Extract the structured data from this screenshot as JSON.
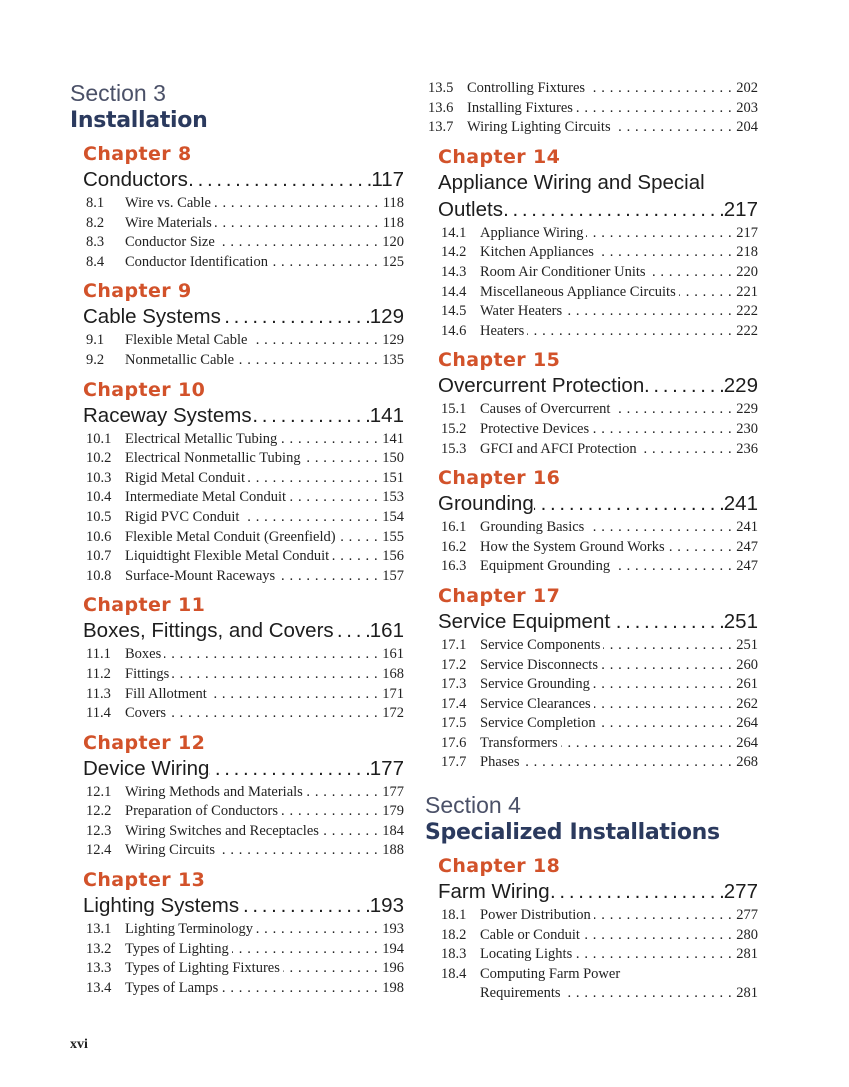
{
  "folio": "xvi",
  "columns": [
    {
      "blocks": [
        {
          "type": "section",
          "label": "Section 3",
          "title": "Installation"
        },
        {
          "type": "chapter",
          "label": "Chapter 8",
          "title": "Conductors",
          "page": "117",
          "entries": [
            {
              "num": "8.1",
              "title": "Wire vs. Cable",
              "page": "118"
            },
            {
              "num": "8.2",
              "title": "Wire Materials",
              "page": "118"
            },
            {
              "num": "8.3",
              "title": "Conductor Size",
              "page": "120"
            },
            {
              "num": "8.4",
              "title": "Conductor Identification",
              "page": "125"
            }
          ]
        },
        {
          "type": "chapter",
          "label": "Chapter 9",
          "title": "Cable Systems",
          "page": "129",
          "entries": [
            {
              "num": "9.1",
              "title": "Flexible Metal Cable",
              "page": "129"
            },
            {
              "num": "9.2",
              "title": "Nonmetallic Cable",
              "page": "135"
            }
          ]
        },
        {
          "type": "chapter",
          "label": "Chapter 10",
          "title": "Raceway Systems",
          "page": "141",
          "entries": [
            {
              "num": "10.1",
              "title": "Electrical Metallic Tubing",
              "page": "141"
            },
            {
              "num": "10.2",
              "title": "Electrical Nonmetallic Tubing",
              "page": "150"
            },
            {
              "num": "10.3",
              "title": "Rigid Metal Conduit",
              "page": "151"
            },
            {
              "num": "10.4",
              "title": "Intermediate Metal Conduit",
              "page": "153"
            },
            {
              "num": "10.5",
              "title": "Rigid PVC Conduit",
              "page": "154"
            },
            {
              "num": "10.6",
              "title": "Flexible Metal Conduit (Greenfield)",
              "page": "155"
            },
            {
              "num": "10.7",
              "title": "Liquidtight Flexible Metal Conduit",
              "page": "156"
            },
            {
              "num": "10.8",
              "title": "Surface-Mount Raceways",
              "page": "157"
            }
          ]
        },
        {
          "type": "chapter",
          "label": "Chapter 11",
          "title": "Boxes, Fittings, and Covers",
          "page": "161",
          "entries": [
            {
              "num": "11.1",
              "title": "Boxes",
              "page": "161"
            },
            {
              "num": "11.2",
              "title": "Fittings",
              "page": "168"
            },
            {
              "num": "11.3",
              "title": "Fill Allotment",
              "page": "171"
            },
            {
              "num": "11.4",
              "title": "Covers",
              "page": "172"
            }
          ]
        },
        {
          "type": "chapter",
          "label": "Chapter 12",
          "title": "Device Wiring",
          "page": "177",
          "entries": [
            {
              "num": "12.1",
              "title": "Wiring Methods and Materials",
              "page": "177"
            },
            {
              "num": "12.2",
              "title": "Preparation of Conductors",
              "page": "179"
            },
            {
              "num": "12.3",
              "title": "Wiring Switches and Receptacles",
              "page": "184"
            },
            {
              "num": "12.4",
              "title": "Wiring Circuits",
              "page": "188"
            }
          ]
        },
        {
          "type": "chapter",
          "label": "Chapter 13",
          "title": "Lighting Systems",
          "page": "193",
          "entries": [
            {
              "num": "13.1",
              "title": "Lighting Terminology",
              "page": "193"
            },
            {
              "num": "13.2",
              "title": "Types of Lighting",
              "page": "194"
            },
            {
              "num": "13.3",
              "title": "Types of Lighting Fixtures",
              "page": "196"
            },
            {
              "num": "13.4",
              "title": "Types of Lamps",
              "page": "198"
            }
          ]
        }
      ]
    },
    {
      "blocks": [
        {
          "type": "entries",
          "entries": [
            {
              "num": "13.5",
              "title": "Controlling Fixtures",
              "page": "202"
            },
            {
              "num": "13.6",
              "title": "Installing Fixtures",
              "page": "203"
            },
            {
              "num": "13.7",
              "title": "Wiring Lighting Circuits",
              "page": "204"
            }
          ]
        },
        {
          "type": "chapter",
          "label": "Chapter 14",
          "title_first": "Appliance Wiring and Special",
          "title": "Outlets",
          "page": "217",
          "entries": [
            {
              "num": "14.1",
              "title": "Appliance Wiring",
              "page": "217"
            },
            {
              "num": "14.2",
              "title": "Kitchen Appliances",
              "page": "218"
            },
            {
              "num": "14.3",
              "title": "Room Air Conditioner Units",
              "page": "220"
            },
            {
              "num": "14.4",
              "title": "Miscellaneous Appliance Circuits",
              "page": "221"
            },
            {
              "num": "14.5",
              "title": "Water Heaters",
              "page": "222"
            },
            {
              "num": "14.6",
              "title": "Heaters",
              "page": "222"
            }
          ]
        },
        {
          "type": "chapter",
          "label": "Chapter 15",
          "title": "Overcurrent Protection",
          "page": "229",
          "entries": [
            {
              "num": "15.1",
              "title": "Causes of Overcurrent",
              "page": "229"
            },
            {
              "num": "15.2",
              "title": "Protective Devices",
              "page": "230"
            },
            {
              "num": "15.3",
              "title": "GFCI and AFCI Protection",
              "page": "236"
            }
          ]
        },
        {
          "type": "chapter",
          "label": "Chapter 16",
          "title": "Grounding",
          "page": "241",
          "entries": [
            {
              "num": "16.1",
              "title": "Grounding Basics",
              "page": "241"
            },
            {
              "num": "16.2",
              "title": "How the System Ground Works",
              "page": "247"
            },
            {
              "num": "16.3",
              "title": "Equipment Grounding",
              "page": "247"
            }
          ]
        },
        {
          "type": "chapter",
          "label": "Chapter 17",
          "title": "Service Equipment",
          "page": "251",
          "entries": [
            {
              "num": "17.1",
              "title": "Service Components",
              "page": "251"
            },
            {
              "num": "17.2",
              "title": "Service Disconnects",
              "page": "260"
            },
            {
              "num": "17.3",
              "title": "Service Grounding",
              "page": "261"
            },
            {
              "num": "17.4",
              "title": "Service Clearances",
              "page": "262"
            },
            {
              "num": "17.5",
              "title": "Service Completion",
              "page": "264"
            },
            {
              "num": "17.6",
              "title": "Transformers",
              "page": "264"
            },
            {
              "num": "17.7",
              "title": "Phases",
              "page": "268"
            }
          ]
        },
        {
          "type": "section",
          "label": "Section 4",
          "title": "Specialized Installations"
        },
        {
          "type": "chapter",
          "label": "Chapter 18",
          "title": "Farm Wiring",
          "page": "277",
          "entries": [
            {
              "num": "18.1",
              "title": "Power Distribution",
              "page": "277"
            },
            {
              "num": "18.2",
              "title": "Cable or Conduit",
              "page": "280"
            },
            {
              "num": "18.3",
              "title": "Locating Lights",
              "page": "281"
            },
            {
              "num": "18.4",
              "title_first": "Computing Farm Power",
              "title": "Requirements",
              "page": "281"
            }
          ]
        }
      ]
    }
  ]
}
